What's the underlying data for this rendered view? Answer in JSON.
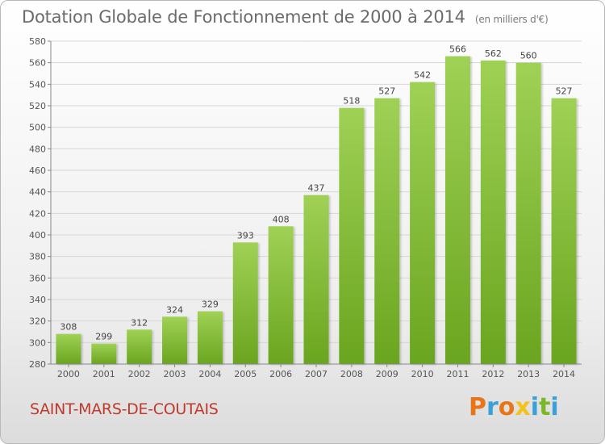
{
  "header": {
    "title": "Dotation Globale de Fonctionnement de 2000 à 2014",
    "unit": "(en milliers d'€)"
  },
  "footer": {
    "commune": "SAINT-MARS-DE-COUTAIS",
    "logo": "Proxiti"
  },
  "colors": {
    "bar_top": "#9fd155",
    "bar_bottom": "#6aa51f",
    "grid": "#d6d6d6",
    "commune_text": "#c0392b",
    "logo_letters": [
      "#e8751a",
      "#3aa0d8",
      "#e8751a",
      "#f2c31a",
      "#3aa0d8",
      "#7ab829",
      "#3aa0d8"
    ]
  },
  "chart_data": {
    "type": "bar",
    "title": "Dotation Globale de Fonctionnement de 2000 à 2014",
    "subtitle": "(en milliers d'€)",
    "xlabel": "",
    "ylabel": "",
    "categories": [
      "2000",
      "2001",
      "2002",
      "2003",
      "2004",
      "2005",
      "2006",
      "2007",
      "2008",
      "2009",
      "2010",
      "2011",
      "2012",
      "2013",
      "2014"
    ],
    "values": [
      308,
      299,
      312,
      324,
      329,
      393,
      408,
      437,
      518,
      527,
      542,
      566,
      562,
      560,
      527
    ],
    "ylim": [
      280,
      580
    ],
    "yticks": [
      280,
      300,
      320,
      340,
      360,
      380,
      400,
      420,
      440,
      460,
      480,
      500,
      520,
      540,
      560,
      580
    ],
    "grid": true,
    "data_labels": true
  }
}
